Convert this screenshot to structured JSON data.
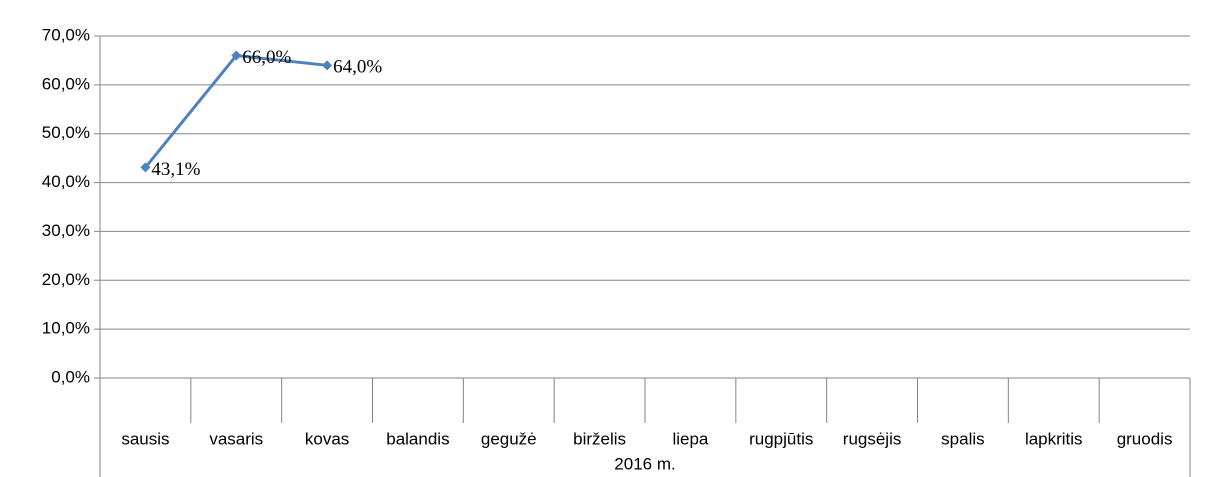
{
  "chart_data": {
    "type": "line",
    "categories": [
      "sausis",
      "vasaris",
      "kovas",
      "balandis",
      "gegužė",
      "birželis",
      "liepa",
      "rugpjūtis",
      "rugsėjis",
      "spalis",
      "lapkritis",
      "gruodis"
    ],
    "group_label": "2016 m.",
    "series": [
      {
        "color": "#4f81bd",
        "values": [
          43.1,
          66.0,
          64.0,
          null,
          null,
          null,
          null,
          null,
          null,
          null,
          null,
          null
        ],
        "value_labels": [
          "43,1%",
          "66,0%",
          "64,0%",
          null,
          null,
          null,
          null,
          null,
          null,
          null,
          null,
          null
        ]
      }
    ],
    "ylim": [
      0,
      70
    ],
    "yticks": [
      {
        "value": 0,
        "label": "0,0%"
      },
      {
        "value": 10,
        "label": "10,0%"
      },
      {
        "value": 20,
        "label": "20,0%"
      },
      {
        "value": 30,
        "label": "30,0%"
      },
      {
        "value": 40,
        "label": "40,0%"
      },
      {
        "value": 50,
        "label": "50,0%"
      },
      {
        "value": 60,
        "label": "60,0%"
      },
      {
        "value": 70,
        "label": "70,0%"
      }
    ],
    "grid": true
  }
}
